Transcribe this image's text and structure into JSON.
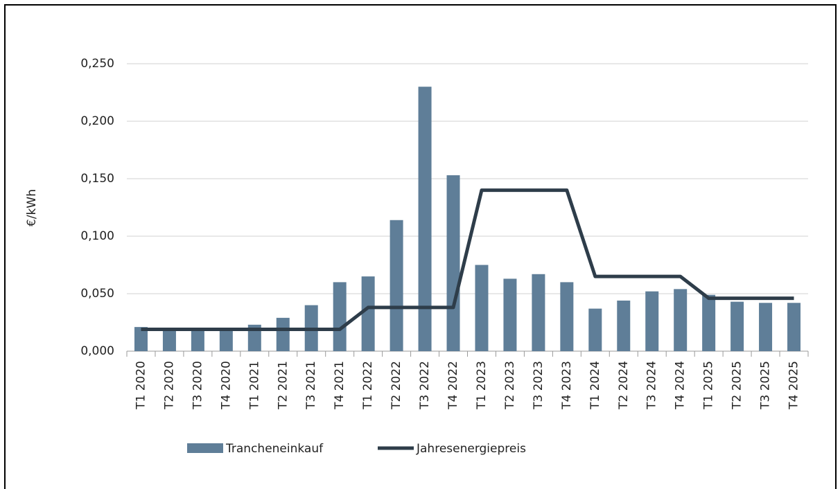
{
  "chart_data": {
    "type": "bar_line",
    "y_label": "€/kWh",
    "categories": [
      "T1 2020",
      "T2 2020",
      "T3 2020",
      "T4 2020",
      "T1 2021",
      "T2 2021",
      "T3 2021",
      "T4 2021",
      "T1 2022",
      "T2 2022",
      "T3 2022",
      "T4 2022",
      "T1 2023",
      "T2 2023",
      "T3 2023",
      "T4 2023",
      "T1 2024",
      "T2 2024",
      "T3 2024",
      "T4 2024",
      "T1 2025",
      "T2 2025",
      "T3 2025",
      "T4 2025"
    ],
    "series": [
      {
        "name": "Tranche­neinkauf",
        "type": "bar",
        "color": "#5f7e98",
        "values": [
          0.021,
          0.02,
          0.02,
          0.02,
          0.023,
          0.029,
          0.04,
          0.06,
          0.065,
          0.114,
          0.23,
          0.153,
          0.075,
          0.063,
          0.067,
          0.06,
          0.037,
          0.044,
          0.052,
          0.054,
          0.049,
          0.043,
          0.042,
          0.042
        ]
      },
      {
        "name": "Jahresenergiepreis",
        "type": "line",
        "color": "#2e3d4a",
        "values": [
          0.019,
          0.019,
          0.019,
          0.019,
          0.019,
          0.019,
          0.019,
          0.019,
          0.038,
          0.038,
          0.038,
          0.038,
          0.14,
          0.14,
          0.14,
          0.14,
          0.065,
          0.065,
          0.065,
          0.065,
          0.046,
          0.046,
          0.046,
          0.046
        ]
      }
    ],
    "ylim": [
      0,
      0.25
    ],
    "yticks": [
      {
        "value": 0,
        "label": "0,000"
      },
      {
        "value": 0.05,
        "label": "0,050"
      },
      {
        "value": 0.1,
        "label": "0,100"
      },
      {
        "value": 0.15,
        "label": "0,150"
      },
      {
        "value": 0.2,
        "label": "0,200"
      },
      {
        "value": 0.25,
        "label": "0,250"
      }
    ],
    "grid": true
  }
}
